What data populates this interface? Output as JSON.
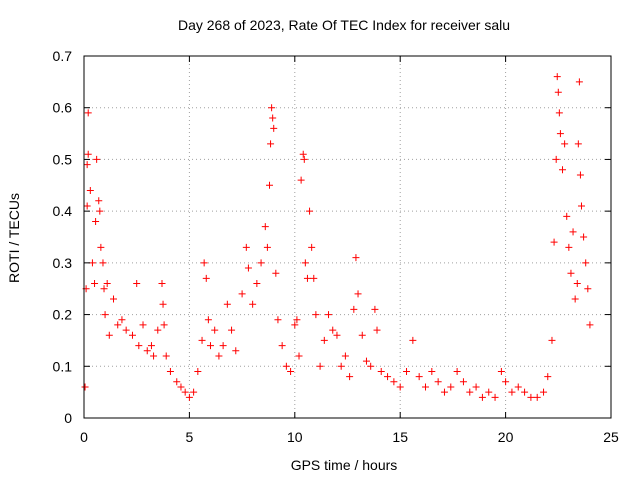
{
  "chart_data": {
    "type": "scatter",
    "title": "Day 268 of 2023, Rate Of TEC Index for receiver salu",
    "xlabel": "GPS time / hours",
    "ylabel": "ROTI / TECUs",
    "xlim": [
      0,
      25
    ],
    "ylim": [
      0,
      0.7
    ],
    "xticks": [
      0,
      5,
      10,
      15,
      20,
      25
    ],
    "yticks": [
      0,
      0.1,
      0.2,
      0.3,
      0.4,
      0.5,
      0.6,
      0.7
    ],
    "xtick_labels": [
      "0",
      "5",
      "10",
      "15",
      "20",
      "25"
    ],
    "ytick_labels": [
      "0",
      "0.1",
      "0.2",
      "0.3",
      "0.4",
      "0.5",
      "0.6",
      "0.7"
    ],
    "grid": true,
    "marker": "+",
    "marker_color": "#ff0000",
    "series": [
      {
        "points": [
          [
            0.05,
            0.06
          ],
          [
            0.1,
            0.25
          ],
          [
            0.15,
            0.41
          ],
          [
            0.15,
            0.49
          ],
          [
            0.2,
            0.59
          ],
          [
            0.2,
            0.51
          ],
          [
            0.3,
            0.44
          ],
          [
            0.4,
            0.3
          ],
          [
            0.5,
            0.26
          ],
          [
            0.55,
            0.38
          ],
          [
            0.6,
            0.5
          ],
          [
            0.7,
            0.42
          ],
          [
            0.75,
            0.4
          ],
          [
            0.8,
            0.33
          ],
          [
            0.9,
            0.3
          ],
          [
            0.95,
            0.25
          ],
          [
            1.0,
            0.2
          ],
          [
            1.1,
            0.26
          ],
          [
            1.2,
            0.16
          ],
          [
            1.4,
            0.23
          ],
          [
            1.6,
            0.18
          ],
          [
            1.8,
            0.19
          ],
          [
            2.0,
            0.17
          ],
          [
            2.3,
            0.16
          ],
          [
            2.5,
            0.26
          ],
          [
            2.6,
            0.14
          ],
          [
            2.8,
            0.18
          ],
          [
            3.0,
            0.13
          ],
          [
            3.2,
            0.14
          ],
          [
            3.3,
            0.12
          ],
          [
            3.5,
            0.17
          ],
          [
            3.7,
            0.26
          ],
          [
            3.75,
            0.22
          ],
          [
            3.8,
            0.18
          ],
          [
            3.9,
            0.12
          ],
          [
            4.1,
            0.09
          ],
          [
            4.4,
            0.07
          ],
          [
            4.6,
            0.06
          ],
          [
            4.8,
            0.05
          ],
          [
            5.0,
            0.04
          ],
          [
            5.2,
            0.05
          ],
          [
            5.4,
            0.09
          ],
          [
            5.6,
            0.15
          ],
          [
            5.7,
            0.3
          ],
          [
            5.8,
            0.27
          ],
          [
            5.9,
            0.19
          ],
          [
            6.0,
            0.14
          ],
          [
            6.2,
            0.17
          ],
          [
            6.4,
            0.12
          ],
          [
            6.6,
            0.14
          ],
          [
            6.8,
            0.22
          ],
          [
            7.0,
            0.17
          ],
          [
            7.2,
            0.13
          ],
          [
            7.5,
            0.24
          ],
          [
            7.7,
            0.33
          ],
          [
            7.8,
            0.29
          ],
          [
            8.0,
            0.22
          ],
          [
            8.2,
            0.26
          ],
          [
            8.4,
            0.3
          ],
          [
            8.6,
            0.37
          ],
          [
            8.7,
            0.33
          ],
          [
            8.8,
            0.45
          ],
          [
            8.85,
            0.53
          ],
          [
            8.9,
            0.6
          ],
          [
            8.95,
            0.58
          ],
          [
            9.0,
            0.56
          ],
          [
            9.1,
            0.28
          ],
          [
            9.2,
            0.19
          ],
          [
            9.4,
            0.14
          ],
          [
            9.6,
            0.1
          ],
          [
            9.8,
            0.09
          ],
          [
            10.0,
            0.18
          ],
          [
            10.1,
            0.19
          ],
          [
            10.2,
            0.12
          ],
          [
            10.3,
            0.46
          ],
          [
            10.4,
            0.51
          ],
          [
            10.45,
            0.5
          ],
          [
            10.5,
            0.3
          ],
          [
            10.6,
            0.27
          ],
          [
            10.7,
            0.4
          ],
          [
            10.8,
            0.33
          ],
          [
            10.9,
            0.27
          ],
          [
            11.0,
            0.2
          ],
          [
            11.2,
            0.1
          ],
          [
            11.4,
            0.15
          ],
          [
            11.6,
            0.2
          ],
          [
            11.8,
            0.17
          ],
          [
            12.0,
            0.16
          ],
          [
            12.2,
            0.1
          ],
          [
            12.4,
            0.12
          ],
          [
            12.6,
            0.08
          ],
          [
            12.8,
            0.21
          ],
          [
            12.9,
            0.31
          ],
          [
            13.0,
            0.24
          ],
          [
            13.2,
            0.16
          ],
          [
            13.4,
            0.11
          ],
          [
            13.6,
            0.1
          ],
          [
            13.8,
            0.21
          ],
          [
            13.9,
            0.17
          ],
          [
            14.1,
            0.09
          ],
          [
            14.4,
            0.08
          ],
          [
            14.7,
            0.07
          ],
          [
            15.0,
            0.06
          ],
          [
            15.3,
            0.09
          ],
          [
            15.6,
            0.15
          ],
          [
            15.9,
            0.08
          ],
          [
            16.2,
            0.06
          ],
          [
            16.5,
            0.09
          ],
          [
            16.8,
            0.07
          ],
          [
            17.1,
            0.05
          ],
          [
            17.4,
            0.06
          ],
          [
            17.7,
            0.09
          ],
          [
            18.0,
            0.07
          ],
          [
            18.3,
            0.05
          ],
          [
            18.6,
            0.06
          ],
          [
            18.9,
            0.04
          ],
          [
            19.2,
            0.05
          ],
          [
            19.5,
            0.04
          ],
          [
            19.8,
            0.09
          ],
          [
            20.0,
            0.07
          ],
          [
            20.3,
            0.05
          ],
          [
            20.6,
            0.06
          ],
          [
            20.9,
            0.05
          ],
          [
            21.2,
            0.04
          ],
          [
            21.5,
            0.04
          ],
          [
            21.8,
            0.05
          ],
          [
            22.0,
            0.08
          ],
          [
            22.2,
            0.15
          ],
          [
            22.3,
            0.34
          ],
          [
            22.4,
            0.5
          ],
          [
            22.45,
            0.66
          ],
          [
            22.5,
            0.63
          ],
          [
            22.55,
            0.59
          ],
          [
            22.6,
            0.55
          ],
          [
            22.7,
            0.48
          ],
          [
            22.8,
            0.53
          ],
          [
            22.9,
            0.39
          ],
          [
            23.0,
            0.33
          ],
          [
            23.1,
            0.28
          ],
          [
            23.2,
            0.36
          ],
          [
            23.3,
            0.23
          ],
          [
            23.4,
            0.26
          ],
          [
            23.45,
            0.53
          ],
          [
            23.5,
            0.65
          ],
          [
            23.55,
            0.47
          ],
          [
            23.6,
            0.41
          ],
          [
            23.7,
            0.35
          ],
          [
            23.8,
            0.3
          ],
          [
            23.9,
            0.25
          ],
          [
            24.0,
            0.18
          ]
        ]
      }
    ]
  }
}
